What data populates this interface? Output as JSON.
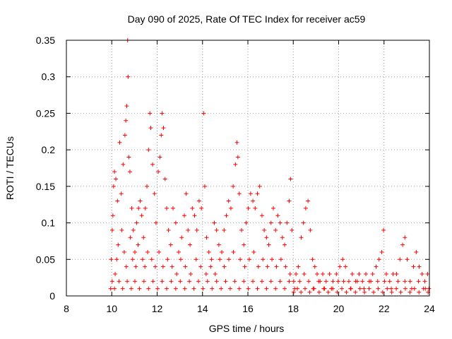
{
  "title": "Day 090 of 2025, Rate Of TEC Index for receiver ac59",
  "chart_data": {
    "type": "scatter",
    "title": "Day 090 of 2025, Rate Of TEC Index for receiver ac59",
    "xlabel": "GPS time / hours",
    "ylabel": "ROTI / TECUs",
    "xlim": [
      8,
      24
    ],
    "ylim": [
      0,
      0.35
    ],
    "x_ticks": [
      8,
      10,
      12,
      14,
      16,
      18,
      20,
      22,
      24
    ],
    "y_ticks": [
      0,
      0.05,
      0.1,
      0.15,
      0.2,
      0.25,
      0.3,
      0.35
    ],
    "x_tick_labels": [
      "8",
      "10",
      "12",
      "14",
      "16",
      "18",
      "20",
      "22",
      "24"
    ],
    "y_tick_labels": [
      "0",
      "0.05",
      "0.1",
      "0.15",
      "0.2",
      "0.25",
      "0.3",
      "0.35"
    ],
    "grid": true,
    "marker": "plus",
    "color": "#ff0000",
    "series": [
      {
        "values": [
          [
            9.95,
            0.01
          ],
          [
            9.98,
            0.05
          ],
          [
            10.02,
            0.09
          ],
          [
            10.05,
            0.11
          ],
          [
            10.08,
            0.15
          ],
          [
            10.12,
            0.17
          ],
          [
            10.18,
            0.16
          ],
          [
            10.25,
            0.13
          ],
          [
            10.35,
            0.21
          ],
          [
            10.42,
            0.14
          ],
          [
            10.5,
            0.18
          ],
          [
            10.58,
            0.22
          ],
          [
            10.62,
            0.24
          ],
          [
            10.66,
            0.26
          ],
          [
            10.7,
            0.35
          ],
          [
            10.72,
            0.3
          ],
          [
            10.75,
            0.19
          ],
          [
            10.8,
            0.17
          ],
          [
            10.88,
            0.12
          ],
          [
            10.95,
            0.09
          ],
          [
            11.02,
            0.06
          ],
          [
            11.1,
            0.1
          ],
          [
            11.18,
            0.12
          ],
          [
            11.25,
            0.13
          ],
          [
            11.32,
            0.11
          ],
          [
            11.4,
            0.08
          ],
          [
            11.48,
            0.12
          ],
          [
            11.55,
            0.15
          ],
          [
            11.62,
            0.2
          ],
          [
            11.68,
            0.25
          ],
          [
            11.72,
            0.23
          ],
          [
            11.8,
            0.18
          ],
          [
            11.88,
            0.14
          ],
          [
            11.95,
            0.1
          ],
          [
            12.05,
            0.17
          ],
          [
            12.12,
            0.19
          ],
          [
            12.18,
            0.22
          ],
          [
            12.22,
            0.25
          ],
          [
            12.28,
            0.23
          ],
          [
            12.35,
            0.16
          ],
          [
            12.42,
            0.12
          ],
          [
            12.5,
            0.09
          ],
          [
            12.6,
            0.07
          ],
          [
            12.7,
            0.12
          ],
          [
            12.82,
            0.1
          ],
          [
            12.95,
            0.06
          ],
          [
            13.08,
            0.08
          ],
          [
            13.2,
            0.11
          ],
          [
            13.28,
            0.14
          ],
          [
            13.36,
            0.09
          ],
          [
            13.45,
            0.07
          ],
          [
            13.55,
            0.12
          ],
          [
            13.65,
            0.11
          ],
          [
            13.75,
            0.09
          ],
          [
            13.85,
            0.13
          ],
          [
            13.95,
            0.12
          ],
          [
            14.05,
            0.25
          ],
          [
            14.1,
            0.15
          ],
          [
            14.18,
            0.08
          ],
          [
            14.28,
            0.06
          ],
          [
            14.4,
            0.05
          ],
          [
            14.52,
            0.1
          ],
          [
            14.62,
            0.09
          ],
          [
            14.72,
            0.07
          ],
          [
            14.85,
            0.06
          ],
          [
            14.95,
            0.09
          ],
          [
            15.05,
            0.11
          ],
          [
            15.15,
            0.13
          ],
          [
            15.25,
            0.12
          ],
          [
            15.35,
            0.15
          ],
          [
            15.45,
            0.18
          ],
          [
            15.52,
            0.21
          ],
          [
            15.56,
            0.19
          ],
          [
            15.62,
            0.14
          ],
          [
            15.72,
            0.09
          ],
          [
            15.82,
            0.07
          ],
          [
            15.92,
            0.1
          ],
          [
            16.02,
            0.12
          ],
          [
            16.12,
            0.14
          ],
          [
            16.22,
            0.13
          ],
          [
            16.32,
            0.12
          ],
          [
            16.42,
            0.14
          ],
          [
            16.52,
            0.15
          ],
          [
            16.62,
            0.11
          ],
          [
            16.72,
            0.09
          ],
          [
            16.82,
            0.08
          ],
          [
            16.92,
            0.07
          ],
          [
            17.02,
            0.1
          ],
          [
            17.12,
            0.12
          ],
          [
            17.22,
            0.09
          ],
          [
            17.32,
            0.11
          ],
          [
            17.42,
            0.1
          ],
          [
            17.52,
            0.08
          ],
          [
            17.62,
            0.07
          ],
          [
            17.72,
            0.1
          ],
          [
            17.82,
            0.13
          ],
          [
            17.88,
            0.16
          ],
          [
            17.94,
            0.09
          ],
          [
            18.02,
            0.02
          ],
          [
            18.12,
            0.03
          ],
          [
            18.22,
            0.04
          ],
          [
            18.35,
            0.08
          ],
          [
            18.45,
            0.1
          ],
          [
            18.55,
            0.12
          ],
          [
            18.65,
            0.13
          ],
          [
            18.75,
            0.09
          ],
          [
            18.85,
            0.05
          ],
          [
            18.95,
            0.04
          ],
          [
            19.05,
            0.03
          ],
          [
            19.18,
            0.02
          ],
          [
            19.3,
            0.03
          ],
          [
            19.45,
            0.02
          ],
          [
            19.6,
            0.03
          ],
          [
            19.75,
            0.02
          ],
          [
            19.9,
            0.03
          ],
          [
            20.05,
            0.04
          ],
          [
            20.18,
            0.05
          ],
          [
            20.3,
            0.04
          ],
          [
            20.45,
            0.02
          ],
          [
            20.6,
            0.03
          ],
          [
            20.75,
            0.02
          ],
          [
            20.9,
            0.03
          ],
          [
            21.05,
            0.02
          ],
          [
            21.2,
            0.03
          ],
          [
            21.35,
            0.02
          ],
          [
            21.5,
            0.03
          ],
          [
            21.65,
            0.04
          ],
          [
            21.78,
            0.05
          ],
          [
            21.9,
            0.06
          ],
          [
            21.98,
            0.09
          ],
          [
            22.1,
            0.03
          ],
          [
            22.25,
            0.02
          ],
          [
            22.4,
            0.03
          ],
          [
            22.55,
            0.03
          ],
          [
            22.7,
            0.05
          ],
          [
            22.82,
            0.07
          ],
          [
            22.92,
            0.08
          ],
          [
            23.02,
            0.05
          ],
          [
            23.15,
            0.02
          ],
          [
            23.3,
            0.04
          ],
          [
            23.42,
            0.06
          ],
          [
            23.55,
            0.04
          ],
          [
            23.68,
            0.03
          ],
          [
            23.8,
            0.02
          ],
          [
            23.92,
            0.03
          ],
          [
            23.98,
            0.01
          ],
          [
            10.15,
            0.03
          ],
          [
            10.22,
            0.05
          ],
          [
            10.28,
            0.07
          ],
          [
            10.44,
            0.09
          ],
          [
            10.55,
            0.06
          ],
          [
            10.64,
            0.04
          ],
          [
            10.82,
            0.08
          ],
          [
            10.92,
            0.05
          ],
          [
            11.06,
            0.04
          ],
          [
            11.16,
            0.07
          ],
          [
            11.36,
            0.05
          ],
          [
            11.46,
            0.04
          ],
          [
            11.58,
            0.06
          ],
          [
            11.76,
            0.05
          ],
          [
            11.92,
            0.04
          ],
          [
            12.08,
            0.06
          ],
          [
            12.26,
            0.04
          ],
          [
            12.46,
            0.05
          ],
          [
            12.66,
            0.04
          ],
          [
            12.86,
            0.03
          ],
          [
            13.04,
            0.05
          ],
          [
            13.24,
            0.04
          ],
          [
            13.48,
            0.03
          ],
          [
            13.72,
            0.05
          ],
          [
            13.92,
            0.04
          ],
          [
            14.16,
            0.03
          ],
          [
            14.36,
            0.04
          ],
          [
            14.56,
            0.03
          ],
          [
            14.76,
            0.05
          ],
          [
            14.96,
            0.04
          ],
          [
            15.16,
            0.05
          ],
          [
            15.36,
            0.06
          ],
          [
            15.66,
            0.05
          ],
          [
            15.86,
            0.04
          ],
          [
            16.06,
            0.05
          ],
          [
            16.26,
            0.06
          ],
          [
            16.46,
            0.04
          ],
          [
            16.66,
            0.05
          ],
          [
            16.86,
            0.04
          ],
          [
            17.06,
            0.05
          ],
          [
            17.26,
            0.04
          ],
          [
            17.46,
            0.05
          ],
          [
            17.66,
            0.04
          ],
          [
            17.86,
            0.03
          ],
          [
            18.06,
            0.01
          ],
          [
            18.28,
            0.02
          ],
          [
            18.48,
            0.03
          ],
          [
            18.68,
            0.02
          ],
          [
            18.88,
            0.01
          ],
          [
            19.12,
            0.02
          ],
          [
            19.38,
            0.01
          ],
          [
            19.68,
            0.01
          ],
          [
            19.98,
            0.02
          ],
          [
            20.22,
            0.02
          ],
          [
            20.52,
            0.01
          ],
          [
            20.82,
            0.02
          ],
          [
            21.12,
            0.01
          ],
          [
            21.42,
            0.02
          ],
          [
            21.72,
            0.02
          ],
          [
            22.02,
            0.02
          ],
          [
            22.32,
            0.01
          ],
          [
            22.62,
            0.02
          ],
          [
            22.92,
            0.02
          ],
          [
            23.22,
            0.01
          ],
          [
            23.52,
            0.02
          ],
          [
            23.82,
            0.01
          ],
          [
            10.02,
            0.02
          ],
          [
            10.12,
            0.01
          ],
          [
            10.32,
            0.02
          ],
          [
            10.48,
            0.01
          ],
          [
            10.68,
            0.02
          ],
          [
            10.86,
            0.01
          ],
          [
            11.02,
            0.02
          ],
          [
            11.22,
            0.01
          ],
          [
            11.42,
            0.02
          ],
          [
            11.62,
            0.01
          ],
          [
            11.82,
            0.02
          ],
          [
            12.02,
            0.01
          ],
          [
            12.22,
            0.02
          ],
          [
            12.42,
            0.01
          ],
          [
            12.62,
            0.02
          ],
          [
            12.82,
            0.01
          ],
          [
            13.02,
            0.02
          ],
          [
            13.22,
            0.01
          ],
          [
            13.42,
            0.02
          ],
          [
            13.62,
            0.01
          ],
          [
            13.82,
            0.02
          ],
          [
            14.02,
            0.01
          ],
          [
            14.22,
            0.02
          ],
          [
            14.42,
            0.01
          ],
          [
            14.62,
            0.02
          ],
          [
            14.82,
            0.01
          ],
          [
            15.02,
            0.02
          ],
          [
            15.22,
            0.01
          ],
          [
            15.42,
            0.02
          ],
          [
            15.62,
            0.01
          ],
          [
            15.82,
            0.02
          ],
          [
            16.02,
            0.01
          ],
          [
            16.22,
            0.02
          ],
          [
            16.42,
            0.01
          ],
          [
            16.62,
            0.02
          ],
          [
            16.82,
            0.01
          ],
          [
            17.02,
            0.02
          ],
          [
            17.22,
            0.01
          ],
          [
            17.42,
            0.02
          ],
          [
            17.62,
            0.01
          ],
          [
            17.82,
            0.02
          ],
          [
            18.02,
            0.005
          ],
          [
            18.18,
            0.01
          ],
          [
            18.34,
            0.005
          ],
          [
            18.52,
            0.01
          ],
          [
            18.72,
            0.005
          ],
          [
            18.92,
            0.01
          ],
          [
            19.14,
            0.005
          ],
          [
            19.34,
            0.01
          ],
          [
            19.54,
            0.005
          ],
          [
            19.74,
            0.01
          ],
          [
            19.94,
            0.005
          ],
          [
            20.14,
            0.01
          ],
          [
            20.34,
            0.005
          ],
          [
            20.54,
            0.01
          ],
          [
            20.74,
            0.005
          ],
          [
            20.94,
            0.01
          ],
          [
            21.14,
            0.005
          ],
          [
            21.34,
            0.01
          ],
          [
            21.54,
            0.005
          ],
          [
            21.74,
            0.01
          ],
          [
            21.94,
            0.005
          ],
          [
            22.14,
            0.01
          ],
          [
            22.34,
            0.005
          ],
          [
            22.54,
            0.01
          ],
          [
            22.74,
            0.005
          ],
          [
            22.94,
            0.01
          ],
          [
            23.14,
            0.005
          ],
          [
            23.34,
            0.01
          ],
          [
            23.54,
            0.005
          ],
          [
            23.74,
            0.01
          ],
          [
            23.94,
            0.005
          ]
        ]
      }
    ]
  }
}
